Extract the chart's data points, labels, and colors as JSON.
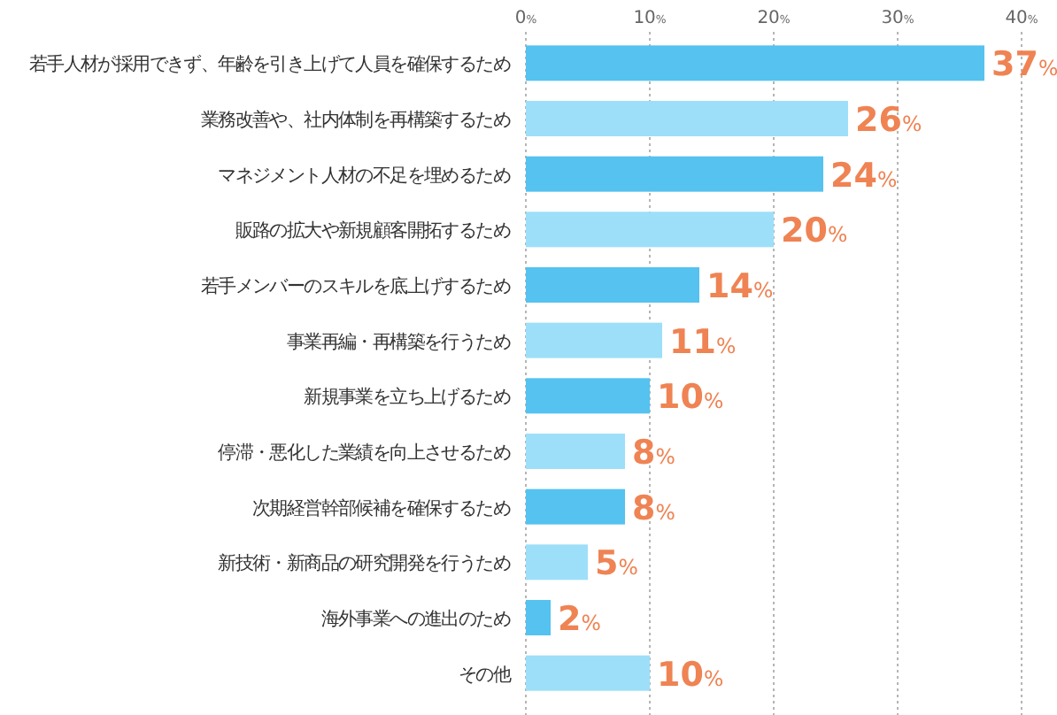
{
  "chart_data": {
    "type": "bar",
    "orientation": "horizontal",
    "categories": [
      "若手人材が採用できず、年齢を引き上げて人員を確保するため",
      "業務改善や、社内体制を再構築するため",
      "マネジメント人材の不足を埋めるため",
      "販路の拡大や新規顧客開拓するため",
      "若手メンバーのスキルを底上げするため",
      "事業再編・再構築を行うため",
      "新規事業を立ち上げるため",
      "停滞・悪化した業績を向上させるため",
      "次期経営幹部候補を確保するため",
      "新技術・新商品の研究開発を行うため",
      "海外事業への進出のため",
      "その他"
    ],
    "values": [
      37,
      26,
      24,
      20,
      14,
      11,
      10,
      8,
      8,
      5,
      2,
      10
    ],
    "colors": [
      "#55c2f0",
      "#9ddff8",
      "#55c2f0",
      "#9ddff8",
      "#55c2f0",
      "#9ddff8",
      "#55c2f0",
      "#9ddff8",
      "#55c2f0",
      "#9ddff8",
      "#55c2f0",
      "#9ddff8"
    ],
    "value_labels": [
      "37%",
      "26%",
      "24%",
      "20%",
      "14%",
      "11%",
      "10%",
      "8%",
      "8%",
      "5%",
      "2%",
      "10%"
    ],
    "xlim": [
      0,
      40
    ],
    "xticks": [
      {
        "value": 0,
        "label": "0%"
      },
      {
        "value": 10,
        "label": "10%"
      },
      {
        "value": 20,
        "label": "20%"
      },
      {
        "value": 30,
        "label": "30%"
      },
      {
        "value": 40,
        "label": "40%"
      }
    ],
    "grid": "x"
  }
}
